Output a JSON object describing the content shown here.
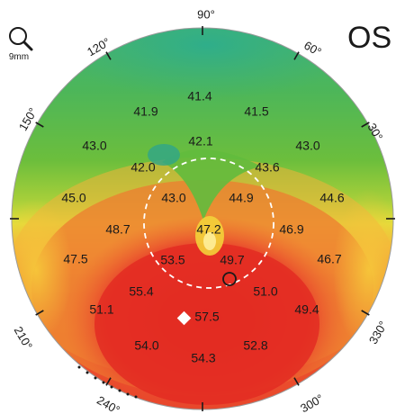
{
  "header": {
    "eye_label": "OS",
    "zoom_label": "9mm",
    "zoom_icon": "magnifier-icon"
  },
  "map": {
    "angles": [
      "90°",
      "60°",
      "30°",
      "120°",
      "150°",
      "330°",
      "210°",
      "300°",
      "240°"
    ],
    "values": [
      "41.4",
      "41.9",
      "41.5",
      "42.1",
      "43.0",
      "43.0",
      "42.0",
      "43.6",
      "45.0",
      "43.0",
      "44.9",
      "44.6",
      "48.7",
      "47.2",
      "46.9",
      "47.5",
      "53.5",
      "49.7",
      "46.7",
      "55.4",
      "51.0",
      "51.1",
      "57.5",
      "49.4",
      "54.0",
      "52.8",
      "54.3"
    ],
    "colors": {
      "low": "#2fae77",
      "mid_green": "#5cbd3a",
      "yellow": "#e9e036",
      "orange": "#f08a2c",
      "red": "#ea3b2c",
      "deep_red": "#e32b22"
    }
  }
}
